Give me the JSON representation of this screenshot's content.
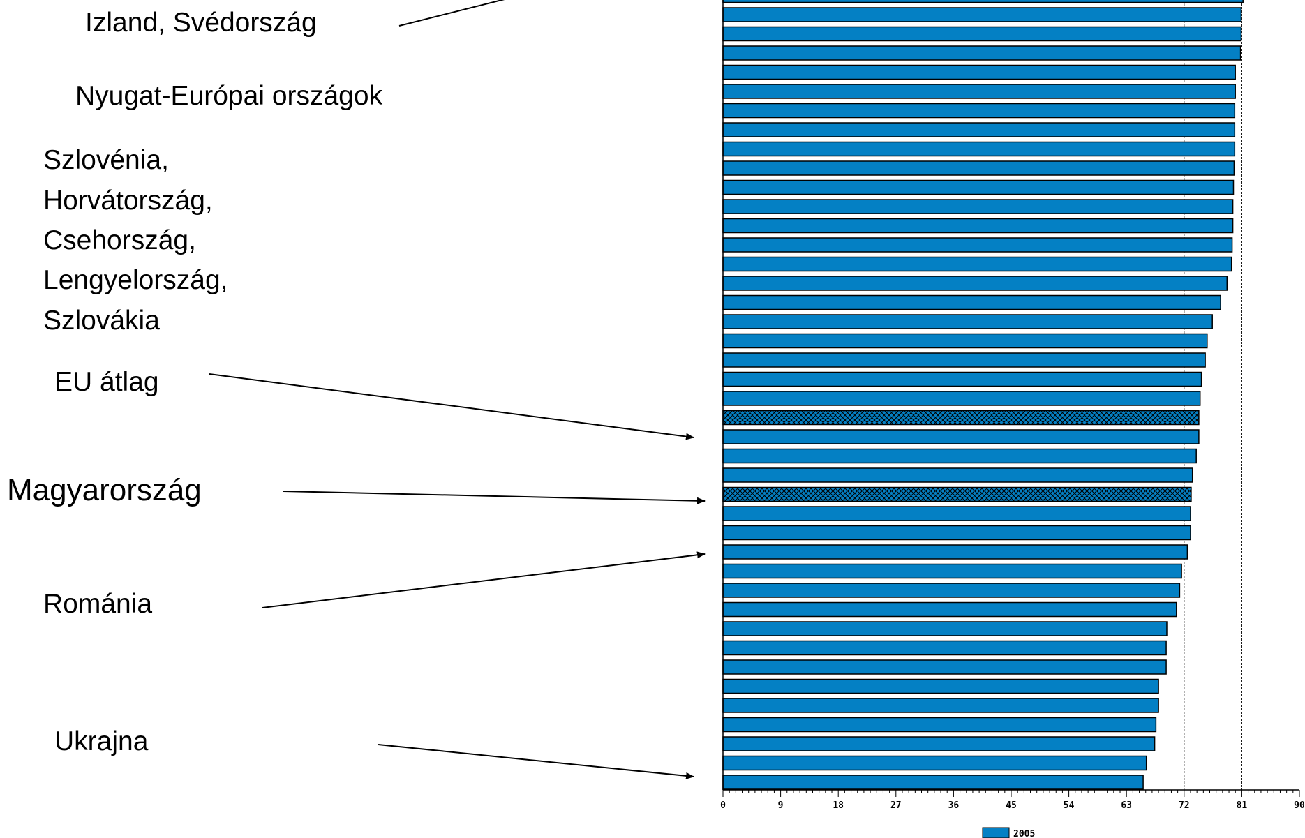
{
  "chart_data": {
    "type": "bar",
    "orientation": "horizontal",
    "xlim": [
      0,
      90
    ],
    "x_ticks": [
      0,
      9,
      18,
      27,
      36,
      45,
      54,
      63,
      72,
      81,
      90
    ],
    "x_tick_labels": [
      "0",
      "9",
      "18",
      "27",
      "36",
      "45",
      "54",
      "63",
      "72",
      "81",
      "90"
    ],
    "reference_lines": [
      72,
      81
    ],
    "legend": {
      "label": "2005",
      "color": "#0480c4",
      "placement": "bottom-center"
    },
    "values": [
      81.2,
      80.9,
      80.9,
      80.8,
      80.0,
      80.0,
      79.9,
      79.9,
      79.9,
      79.8,
      79.7,
      79.6,
      79.6,
      79.5,
      79.4,
      78.7,
      77.7,
      76.4,
      75.6,
      75.3,
      74.7,
      74.5,
      74.3,
      74.3,
      73.9,
      73.3,
      73.1,
      73.0,
      73.0,
      72.5,
      71.6,
      71.3,
      70.8,
      69.3,
      69.2,
      69.2,
      68.0,
      68.0,
      67.6,
      67.4,
      66.1,
      65.6
    ],
    "highlighted_indices": [
      22,
      26
    ],
    "first_bar_clipped": true
  },
  "annotations": {
    "izland": "Izland, Svédország",
    "nyugat": "Nyugat-Európai országok",
    "kozep_lines": [
      "Szlovénia,",
      "Horvátország,",
      "Csehország,",
      "Lengyelország,",
      "Szlovákia"
    ],
    "eu": "EU átlag",
    "hu": "Magyarország",
    "ro": "Románia",
    "ua": "Ukrajna"
  }
}
